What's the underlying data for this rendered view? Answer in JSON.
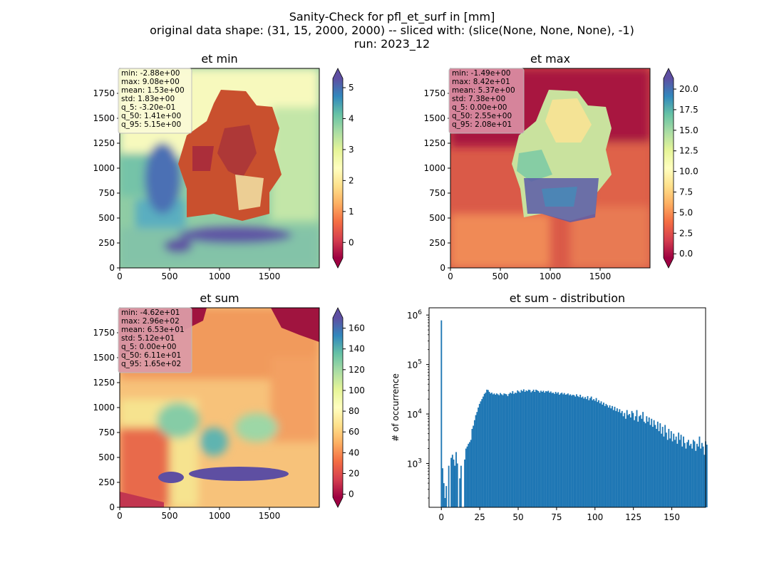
{
  "suptitle": {
    "line1": "Sanity-Check for pfl_et_surf in [mm]",
    "line2": "original data shape: (31, 15, 2000, 2000) -- sliced with: (slice(None, None, None), -1)",
    "line3": "run: 2023_12"
  },
  "chart_data": [
    {
      "type": "heatmap",
      "title": "et min",
      "colormap": "Spectral",
      "xticks": [
        "0",
        "500",
        "1000",
        "1500"
      ],
      "yticks": [
        "0",
        "250",
        "500",
        "750",
        "1000",
        "1250",
        "1500",
        "1750"
      ],
      "xlim": [
        0,
        2000
      ],
      "ylim": [
        0,
        2000
      ],
      "colorbar": {
        "ticks": [
          "0",
          "1",
          "2",
          "3",
          "4",
          "5"
        ],
        "range": [
          -0.5,
          5.3
        ],
        "extend": "both"
      },
      "stats": [
        "min: -2.88e+00",
        "max: 9.08e+00",
        "mean: 1.53e+00",
        "std: 1.83e+00",
        "q_5: -3.20e-01",
        "q_50: 1.41e+00",
        "q_95: 5.15e+00"
      ],
      "stats_box_color": "#fbfbd6"
    },
    {
      "type": "heatmap",
      "title": "et max",
      "colormap": "Spectral",
      "xticks": [
        "0",
        "500",
        "1000",
        "1500"
      ],
      "yticks": [
        "0",
        "250",
        "500",
        "750",
        "1000",
        "1250",
        "1500",
        "1750"
      ],
      "xlim": [
        0,
        2000
      ],
      "ylim": [
        0,
        2000
      ],
      "colorbar": {
        "ticks": [
          "0.0",
          "2.5",
          "5.0",
          "7.5",
          "10.0",
          "12.5",
          "15.0",
          "17.5",
          "20.0"
        ],
        "range": [
          -0.5,
          21.3
        ],
        "extend": "both"
      },
      "stats": [
        "min: -1.49e+00",
        "max: 8.42e+01",
        "mean: 5.37e+00",
        "std: 7.38e+00",
        "q_5: 0.00e+00",
        "q_50: 2.55e+00",
        "q_95: 2.08e+01"
      ],
      "stats_box_color": "#d98aa0"
    },
    {
      "type": "heatmap",
      "title": "et sum",
      "colormap": "Spectral",
      "xticks": [
        "0",
        "500",
        "1000",
        "1500"
      ],
      "yticks": [
        "0",
        "250",
        "500",
        "750",
        "1000",
        "1250",
        "1500",
        "1750"
      ],
      "xlim": [
        0,
        2000
      ],
      "ylim": [
        0,
        2000
      ],
      "colorbar": {
        "ticks": [
          "0",
          "20",
          "40",
          "60",
          "80",
          "100",
          "120",
          "140",
          "160"
        ],
        "range": [
          -3,
          170
        ],
        "extend": "both"
      },
      "stats": [
        "min: -4.62e+01",
        "max: 2.96e+02",
        "mean: 6.53e+01",
        "std: 5.12e+01",
        "q_5: 0.00e+00",
        "q_50: 6.11e+01",
        "q_95: 1.65e+02"
      ],
      "stats_box_color": "#dc9aa6"
    },
    {
      "type": "bar",
      "title": "et sum - distribution",
      "ylabel": "# of occurrence",
      "xlabel": "",
      "yscale": "log",
      "ylim": [
        130,
        1400000
      ],
      "xlim": [
        -8,
        172
      ],
      "xticks": [
        0,
        25,
        50,
        75,
        100,
        125,
        150
      ],
      "yticks": [
        {
          "value": 1000,
          "label": "10^3"
        },
        {
          "value": 10000,
          "label": "10^4"
        },
        {
          "value": 100000,
          "label": "10^5"
        },
        {
          "value": 1000000,
          "label": "10^6"
        }
      ],
      "color": "#1f77b4",
      "bins": {
        "start": -2,
        "width": 0.8,
        "counts": [
          0,
          0,
          780000,
          800,
          400,
          200,
          350,
          0,
          900,
          0,
          1300,
          1500,
          1200,
          900,
          1700,
          1000,
          0,
          500,
          900,
          0,
          0,
          1200,
          2000,
          2200,
          2500,
          2700,
          3000,
          5000,
          5800,
          7500,
          9500,
          11000,
          13500,
          16000,
          18000,
          20000,
          22500,
          25500,
          27000,
          31000,
          30500,
          28000,
          26000,
          27000,
          25000,
          26000,
          24500,
          26000,
          25000,
          24000,
          26500,
          25000,
          24000,
          26000,
          25500,
          25000,
          23000,
          25500,
          27000,
          26000,
          29000,
          25500,
          27000,
          26500,
          30000,
          28500,
          27000,
          30500,
          29000,
          31500,
          28000,
          30000,
          29000,
          31000,
          30500,
          27500,
          29000,
          31000,
          28000,
          31000,
          30000,
          29000,
          27000,
          29500,
          28000,
          29500,
          27000,
          29000,
          28500,
          29500,
          27000,
          28500,
          26500,
          27000,
          25500,
          28000,
          26000,
          27500,
          24500,
          26000,
          27000,
          25000,
          26500,
          24500,
          25000,
          26000,
          24000,
          25000,
          23500,
          24500,
          24000,
          22500,
          25000,
          23000,
          22000,
          24500,
          21500,
          22500,
          20500,
          22000,
          20000,
          23000,
          19000,
          21000,
          22500,
          19000,
          20000,
          18500,
          21000,
          17500,
          19000,
          16500,
          18000,
          15500,
          17000,
          14500,
          16000,
          15000,
          13500,
          15000,
          13000,
          14500,
          12000,
          14000,
          11500,
          13000,
          11000,
          12500,
          10500,
          11500,
          9000,
          10500,
          8000,
          12000,
          9500,
          10000,
          8500,
          11500,
          10500,
          7500,
          9000,
          12000,
          7000,
          9000,
          9500,
          8000,
          11000,
          7000,
          6500,
          9000,
          7000,
          8500,
          6000,
          8000,
          5500,
          7500,
          6000,
          5000,
          7000,
          4500,
          6500,
          4000,
          5500,
          3500,
          6000,
          4200,
          3000,
          5000,
          3200,
          4500,
          2800,
          4000,
          3000,
          3500,
          2500,
          4200,
          3000,
          3800,
          2200,
          3500,
          2600,
          2000,
          2700,
          3000,
          2300,
          2500,
          2000,
          3000,
          2800,
          1800,
          2500,
          2200,
          3500,
          2000,
          2600,
          2200,
          1500,
          2800,
          2400
        ]
      }
    }
  ]
}
